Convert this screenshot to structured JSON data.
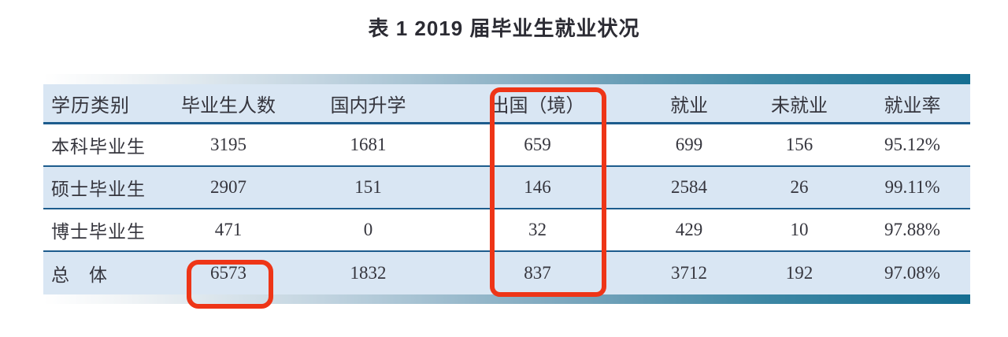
{
  "title": "表 1 2019 届毕业生就业状况",
  "table": {
    "columns": [
      "学历类别",
      "毕业生人数",
      "国内升学",
      "出国（境）",
      "就业",
      "未就业",
      "就业率"
    ],
    "rows": [
      [
        "本科毕业生",
        "3195",
        "1681",
        "659",
        "699",
        "156",
        "95.12%"
      ],
      [
        "硕士毕业生",
        "2907",
        "151",
        "146",
        "2584",
        "26",
        "99.11%"
      ],
      [
        "博士毕业生",
        "471",
        "0",
        "32",
        "429",
        "10",
        "97.88%"
      ],
      [
        "总　体",
        "6573",
        "1832",
        "837",
        "3712",
        "192",
        "97.08%"
      ]
    ]
  },
  "annotations": {
    "highlighted_column": "出国（境）",
    "highlighted_cell_value": "6573",
    "highlight_color": "#ee3517"
  },
  "colors": {
    "row_alt_background": "#d9e6f3",
    "rule_line": "#1d5c8d",
    "accent_bar_dark": "#156e92",
    "title_text": "#2b2b33",
    "body_text": "#35353d"
  }
}
